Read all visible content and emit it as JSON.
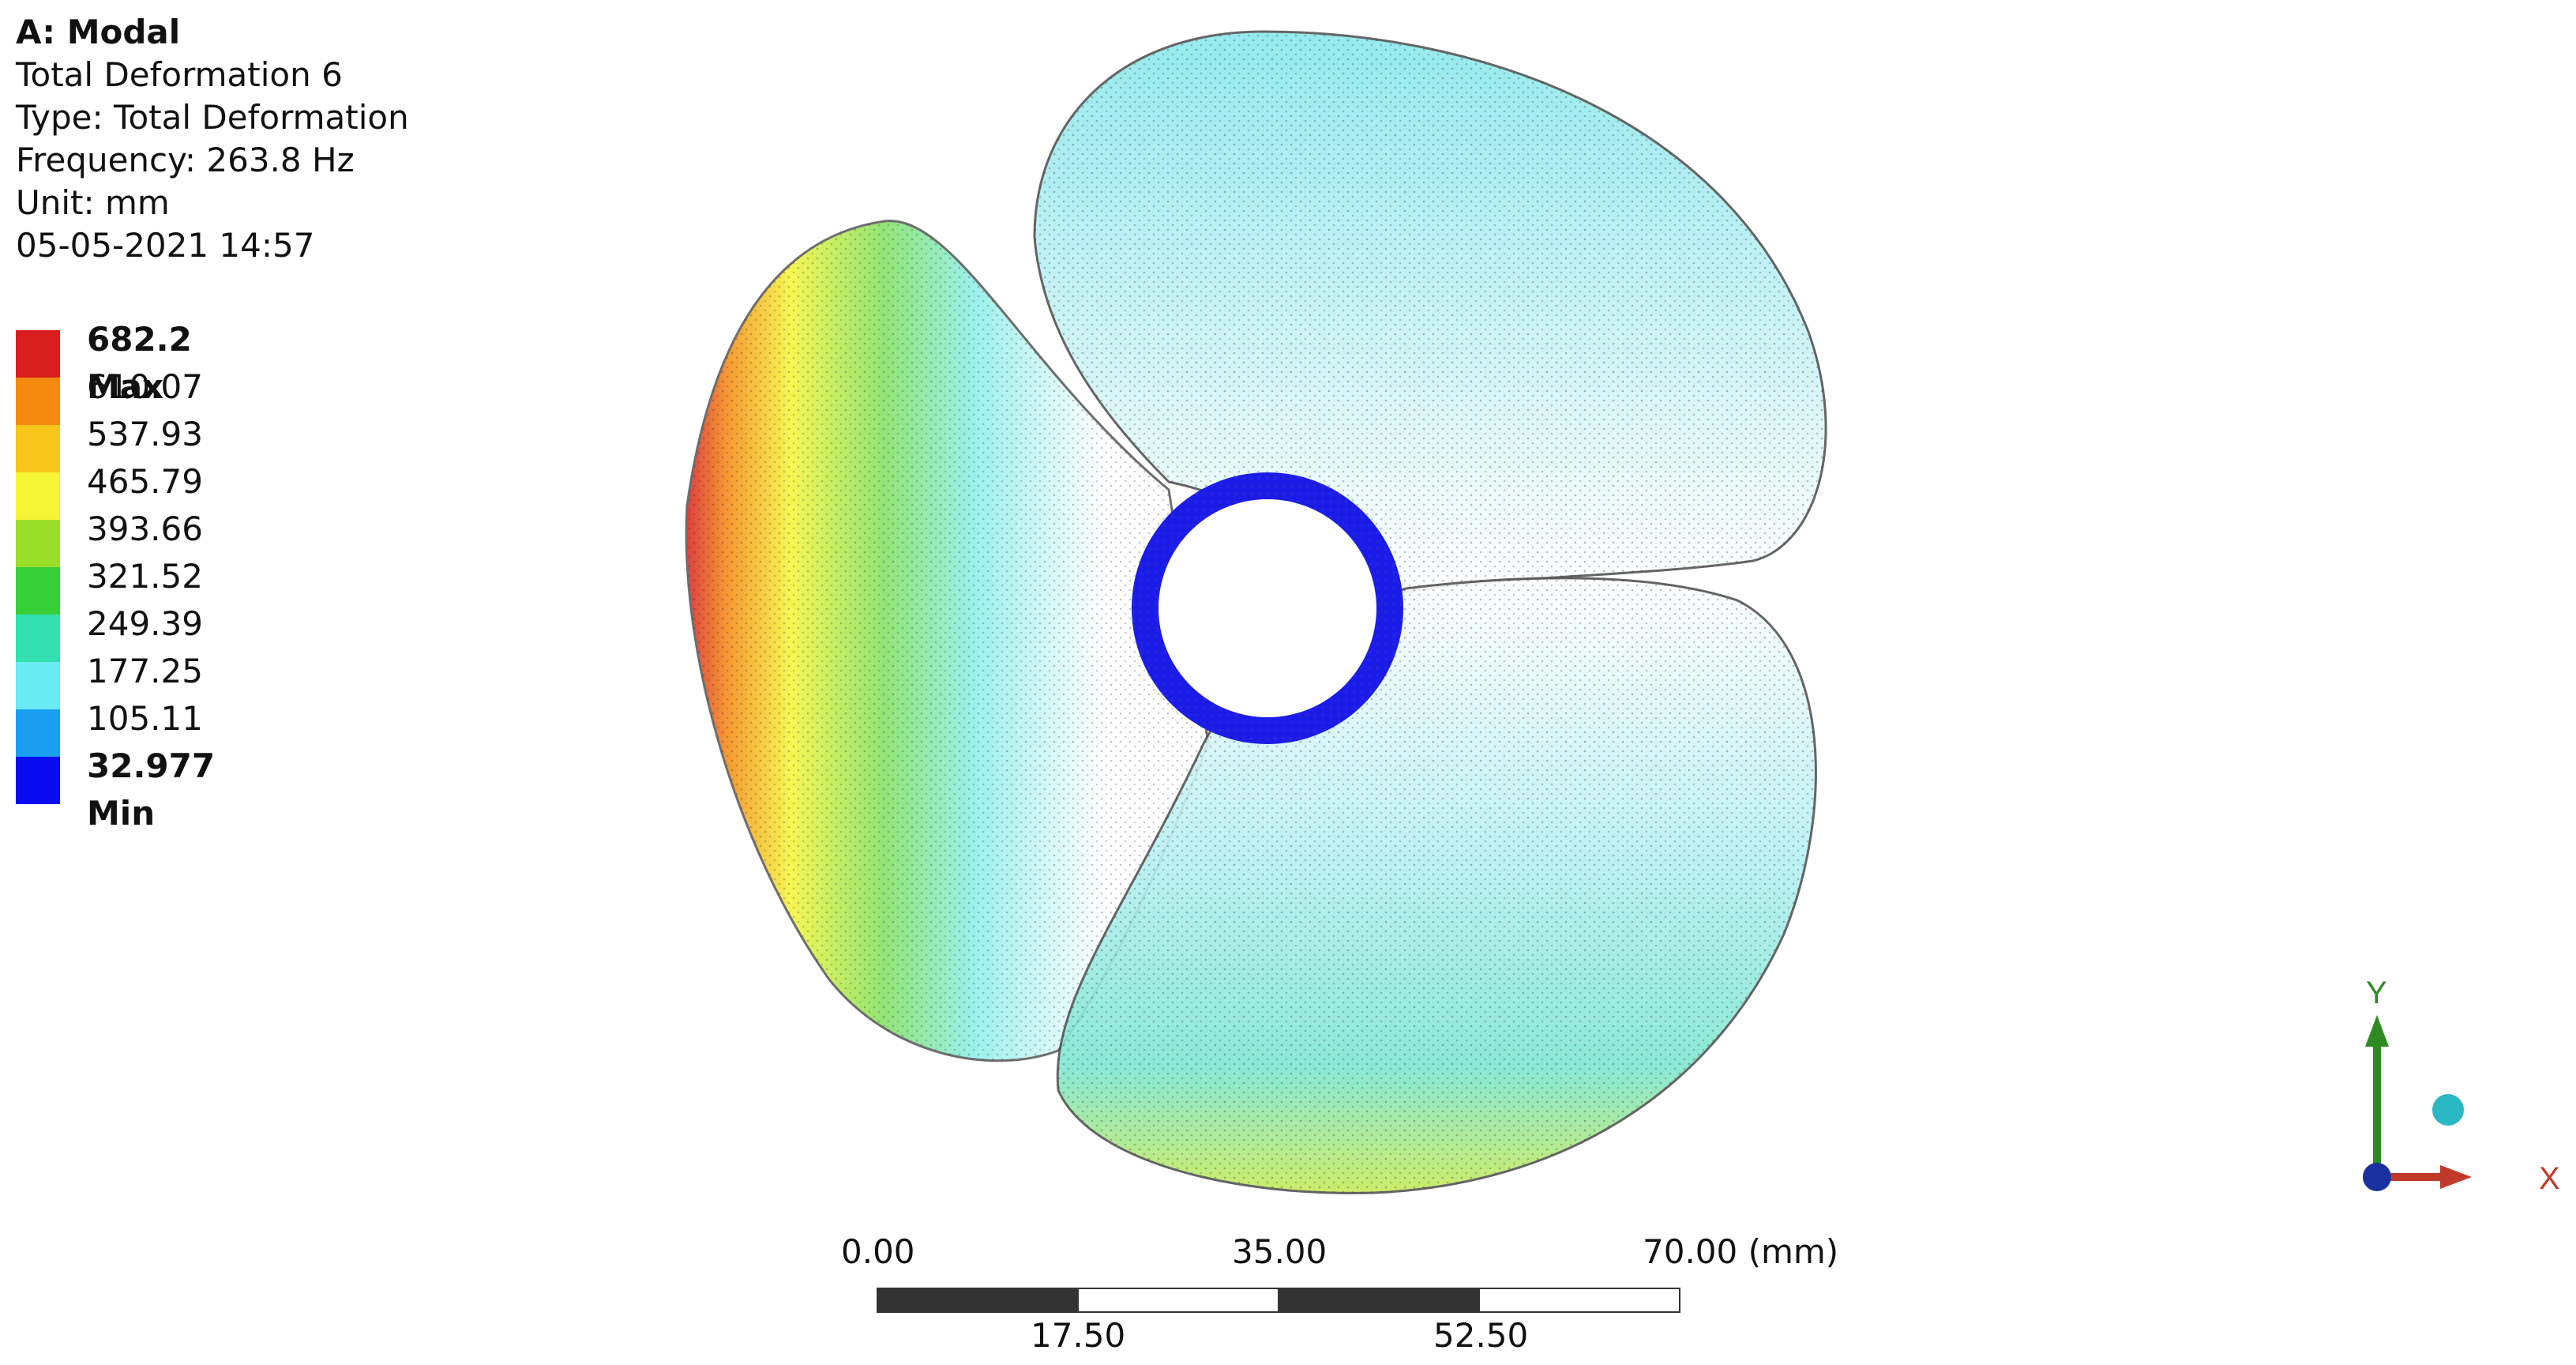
{
  "header": {
    "analysis": "A: Modal",
    "result_name": "Total Deformation 6",
    "type_line": "Type: Total Deformation",
    "frequency_line": "Frequency: 263.8 Hz",
    "unit_line": "Unit: mm",
    "timestamp": "05-05-2021 14:57"
  },
  "legend": {
    "colors": [
      "#d81e1e",
      "#f48a10",
      "#f6c61a",
      "#f5f535",
      "#9bde2a",
      "#38d038",
      "#33e0b0",
      "#6aeaf2",
      "#1a9ff0",
      "#0a0af0"
    ],
    "labels": [
      "682.2 Max",
      "610.07",
      "537.93",
      "465.79",
      "393.66",
      "321.52",
      "249.39",
      "177.25",
      "105.11",
      "32.977 Min"
    ]
  },
  "scale": {
    "top_labels": [
      "0.00",
      "35.00",
      "70.00 (mm)"
    ],
    "bottom_labels": [
      "17.50",
      "52.50"
    ]
  },
  "triad": {
    "x_label": "X",
    "y_label": "Y",
    "x_color": "#c0392b",
    "y_color": "#2e8b22",
    "z_color": "#1a2fa0",
    "iso_color": "#2bb7c4"
  }
}
